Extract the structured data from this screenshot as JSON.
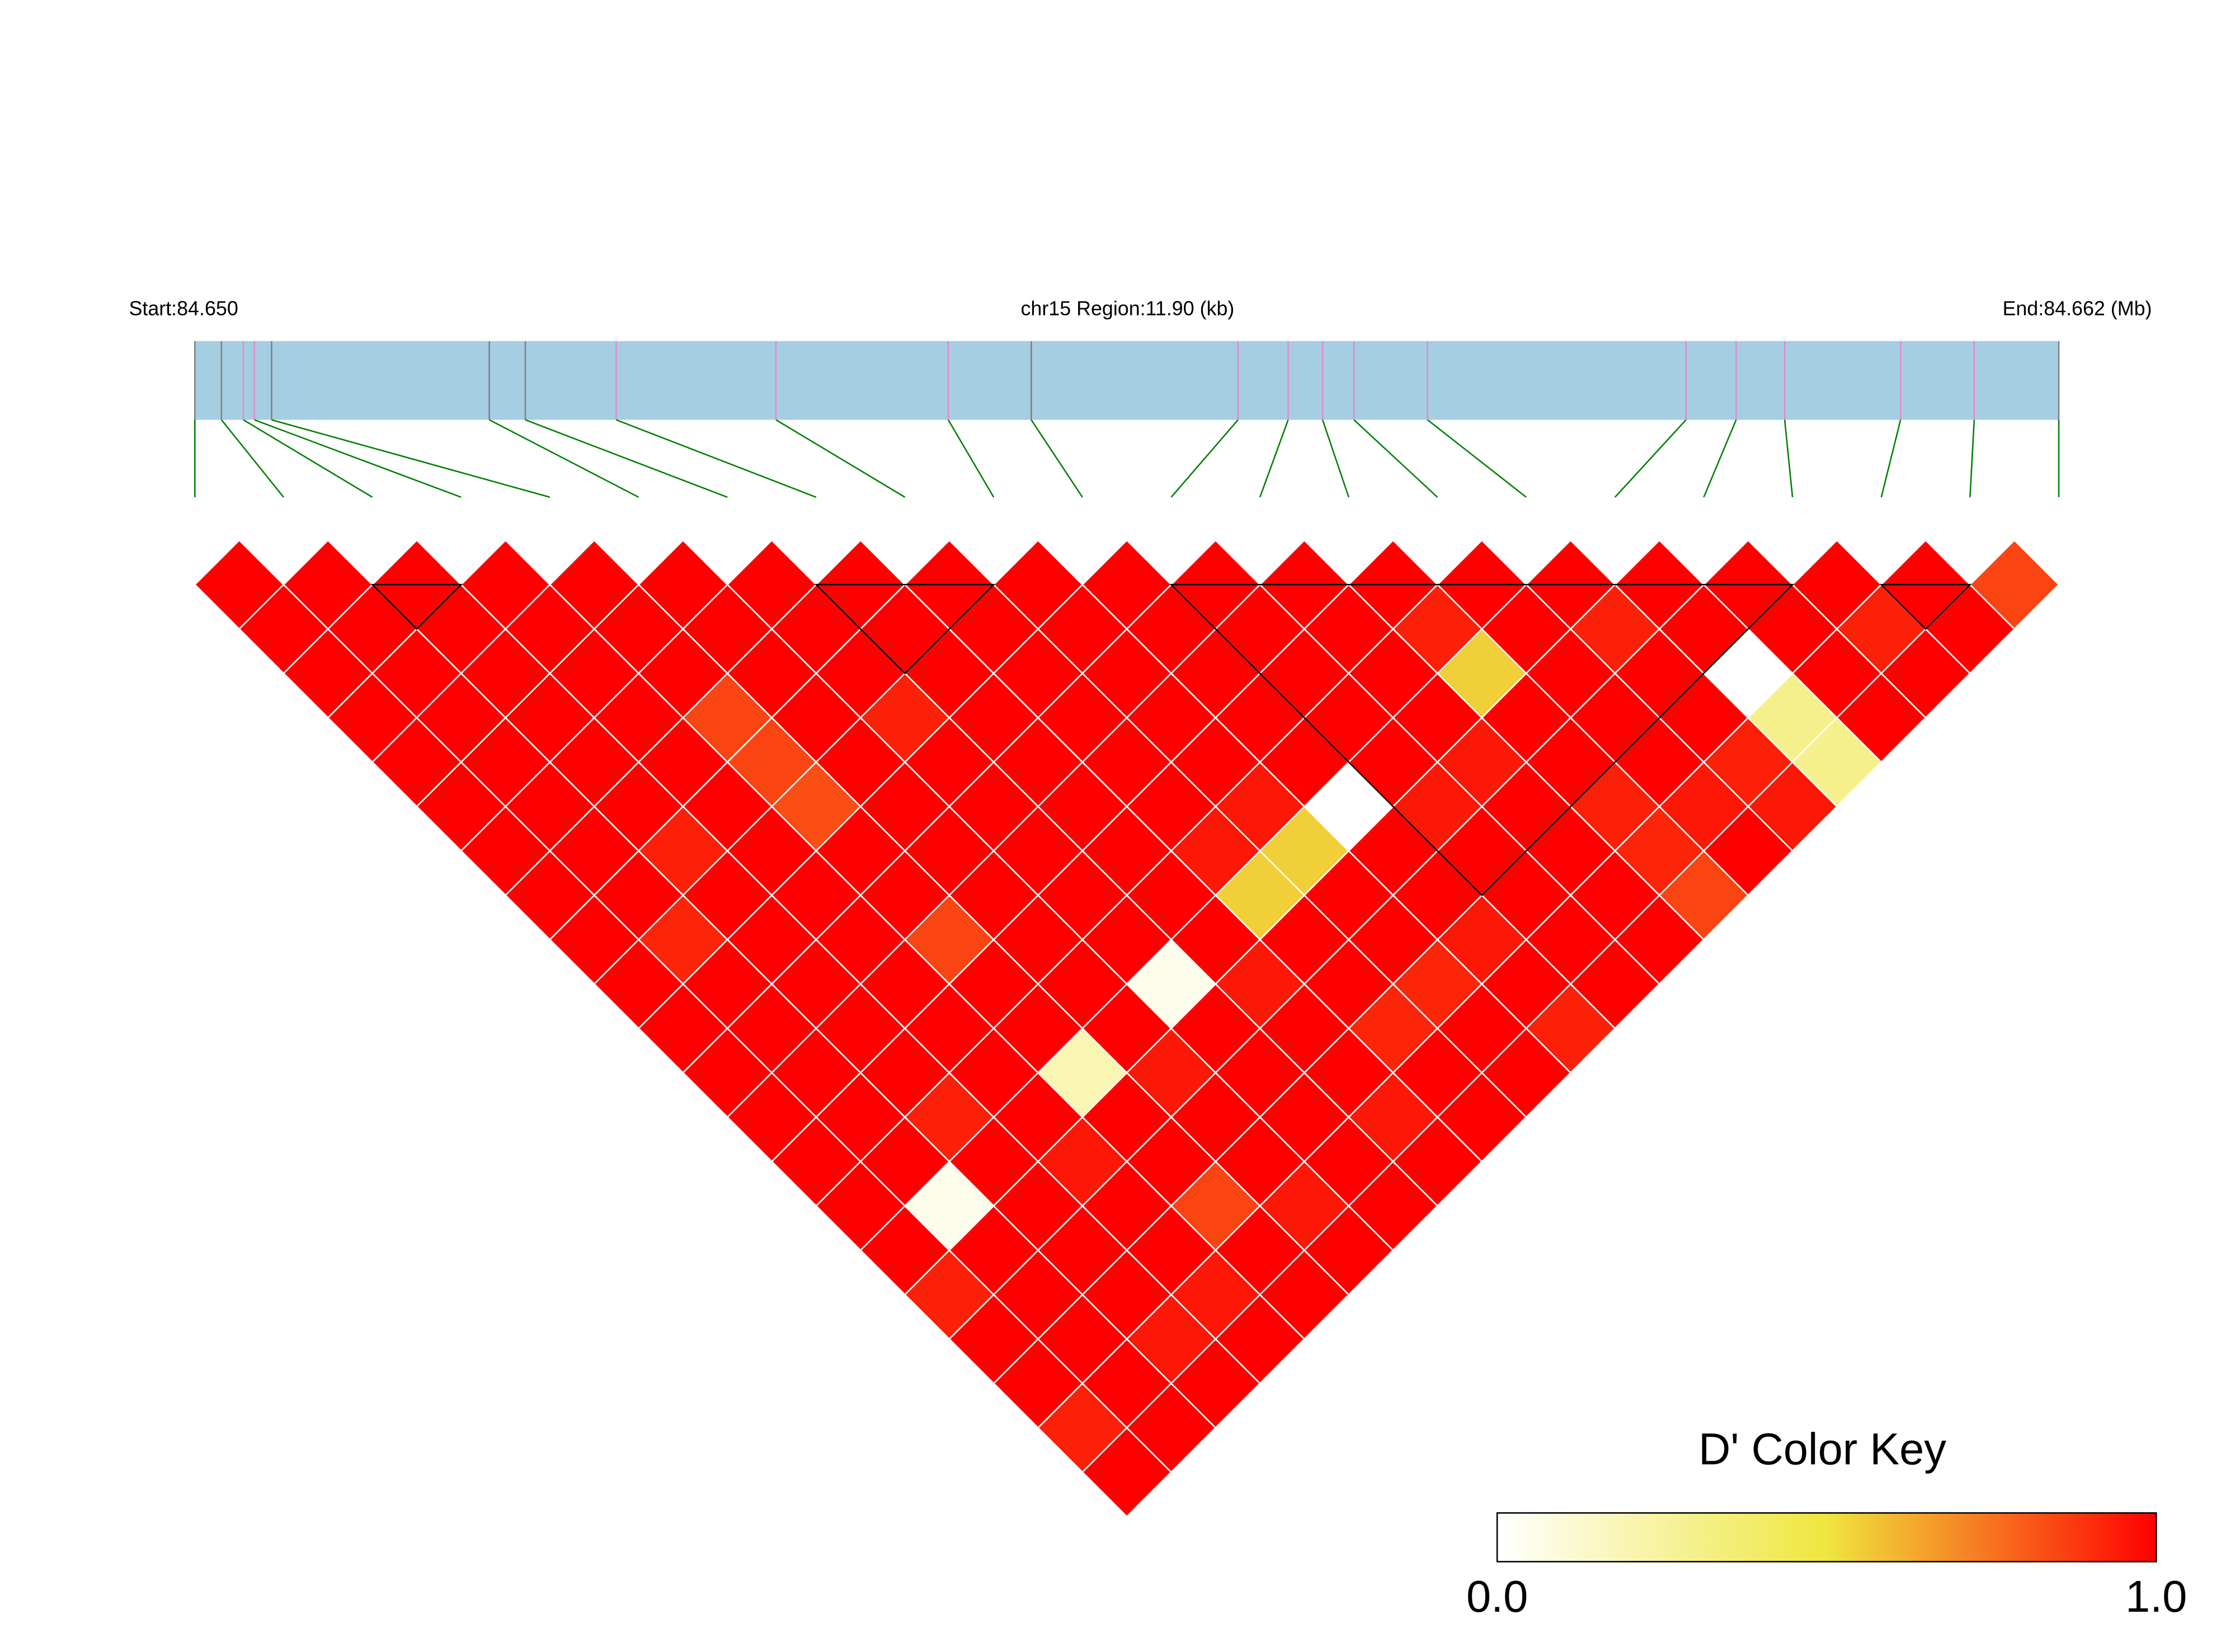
{
  "chart_data": {
    "type": "heatmap",
    "measure": "D'",
    "header": {
      "start_label": "Start:84.650",
      "region_label": "chr15 Region:11.90 (kb)",
      "end_label": "End:84.662 (Mb)"
    },
    "region": {
      "chromosome": "chr15",
      "start_mb": 84.65,
      "end_mb": 84.662,
      "length_kb": 11.9
    },
    "snp_positions_mb": [
      84.65,
      84.65017,
      84.65031,
      84.65038,
      84.65049,
      84.65188,
      84.65211,
      84.65269,
      84.65371,
      84.65481,
      84.65534,
      84.65666,
      84.65698,
      84.6572,
      84.6574,
      84.65787,
      84.65952,
      84.65984,
      84.66015,
      84.66089,
      84.66136,
      84.6619
    ],
    "snp_marker_colors": [
      "#808080",
      "#808080",
      "#e78ac3",
      "#e78ac3",
      "#808080",
      "#808080",
      "#808080",
      "#e78ac3",
      "#e78ac3",
      "#e78ac3",
      "#808080",
      "#e78ac3",
      "#e78ac3",
      "#e78ac3",
      "#e78ac3",
      "#e78ac3",
      "#e78ac3",
      "#e78ac3",
      "#e78ac3",
      "#e78ac3",
      "#e78ac3",
      "#808080"
    ],
    "dprime_upper_rows": [
      [
        1,
        1,
        1,
        1,
        1,
        1,
        1,
        1,
        1,
        1,
        1,
        1,
        1,
        1,
        1,
        1,
        0.93,
        1,
        1,
        0.93,
        1
      ],
      [
        1,
        1,
        1,
        1,
        1,
        1,
        1,
        1,
        0.92,
        1,
        1,
        1,
        1,
        1,
        0.05,
        1,
        1,
        1,
        1,
        1
      ],
      [
        1,
        1,
        1,
        1,
        1,
        1,
        0.93,
        1,
        1,
        1,
        1,
        1,
        0.93,
        1,
        1,
        1,
        1,
        0.95,
        1
      ],
      [
        1,
        1,
        1,
        1,
        1,
        1,
        1,
        1,
        1,
        1,
        1,
        1,
        1,
        0.95,
        1,
        1,
        0.95,
        1
      ],
      [
        1,
        1,
        1,
        0.85,
        0.85,
        0.83,
        1,
        1,
        0.85,
        1,
        1,
        0.2,
        1,
        1,
        0.85,
        1,
        1
      ],
      [
        1,
        1,
        1,
        1,
        1,
        1,
        1,
        1,
        1,
        1,
        1,
        0.95,
        1,
        1,
        0.95,
        1
      ],
      [
        1,
        1,
        1,
        0.93,
        1,
        1,
        1,
        1,
        1,
        0.05,
        1,
        1,
        1,
        1,
        1
      ],
      [
        1,
        1,
        1,
        1,
        1,
        1,
        1,
        1,
        1,
        0.95,
        1,
        1,
        0.95,
        1
      ],
      [
        1,
        1,
        1,
        1,
        1,
        1,
        0.95,
        0.55,
        1,
        1,
        0.92,
        1,
        1
      ],
      [
        1,
        1,
        1,
        1,
        1,
        0.95,
        0.55,
        1,
        1,
        0.92,
        1,
        1
      ],
      [
        1,
        1,
        1,
        1,
        1,
        0,
        1,
        1,
        0.95,
        1,
        0.93
      ],
      [
        1,
        1,
        1,
        1,
        1,
        0.95,
        1,
        1,
        1,
        1
      ],
      [
        1,
        1,
        1,
        1,
        0.95,
        1,
        1,
        1,
        1
      ],
      [
        1,
        0.93,
        0.55,
        1,
        1,
        0.93,
        0.92,
        0.85
      ],
      [
        1,
        1,
        1,
        1,
        1,
        0.95,
        1
      ],
      [
        1,
        0.93,
        1,
        1,
        0.93,
        0.95
      ],
      [
        1,
        1,
        0,
        0.3,
        0.3
      ],
      [
        1,
        1,
        1,
        1
      ],
      [
        1,
        0.93,
        1
      ],
      [
        1,
        1
      ],
      [
        0.85
      ]
    ],
    "ld_blocks": [
      [
        2,
        3
      ],
      [
        7,
        9
      ],
      [
        11,
        18
      ],
      [
        19,
        20
      ]
    ],
    "colors": {
      "gene_bar": "#a6cee3",
      "connector": "#008000",
      "cell_border": "#ffffff",
      "block_outline": "#000000",
      "scale_stops": [
        {
          "value": 0.0,
          "color": "#ffffff"
        },
        {
          "value": 0.5,
          "color": "#efe63e"
        },
        {
          "value": 1.0,
          "color": "#ff0000"
        }
      ]
    },
    "color_key": {
      "title": "D' Color Key",
      "min_label": "0.0",
      "max_label": "1.0",
      "range": [
        0.0,
        1.0
      ]
    }
  }
}
